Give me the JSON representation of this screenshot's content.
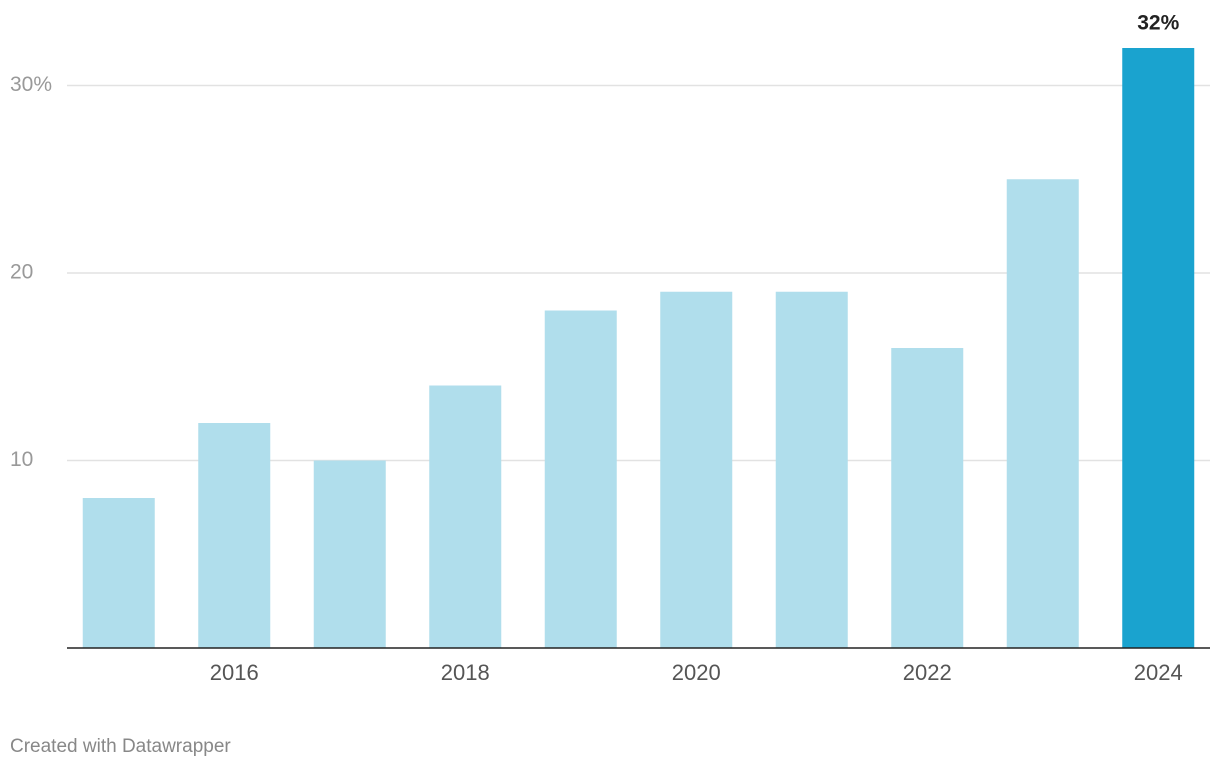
{
  "chart_data": {
    "type": "bar",
    "categories": [
      null,
      "2016",
      null,
      "2018",
      null,
      "2020",
      null,
      "2022",
      null,
      "2024"
    ],
    "values": [
      8,
      12,
      10,
      14,
      18,
      19,
      19,
      16,
      25,
      32
    ],
    "value_labels": [
      null,
      null,
      null,
      null,
      null,
      null,
      null,
      null,
      null,
      "32%"
    ],
    "colors": [
      "#b0deec",
      "#b0deec",
      "#b0deec",
      "#b0deec",
      "#b0deec",
      "#b0deec",
      "#b0deec",
      "#b0deec",
      "#b0deec",
      "#1aa3cf"
    ],
    "ylim": [
      0,
      32
    ],
    "yticks": [
      10,
      20,
      {
        "value": 30,
        "label": "30%"
      }
    ],
    "grid": true,
    "credit": "Created with Datawrapper"
  }
}
